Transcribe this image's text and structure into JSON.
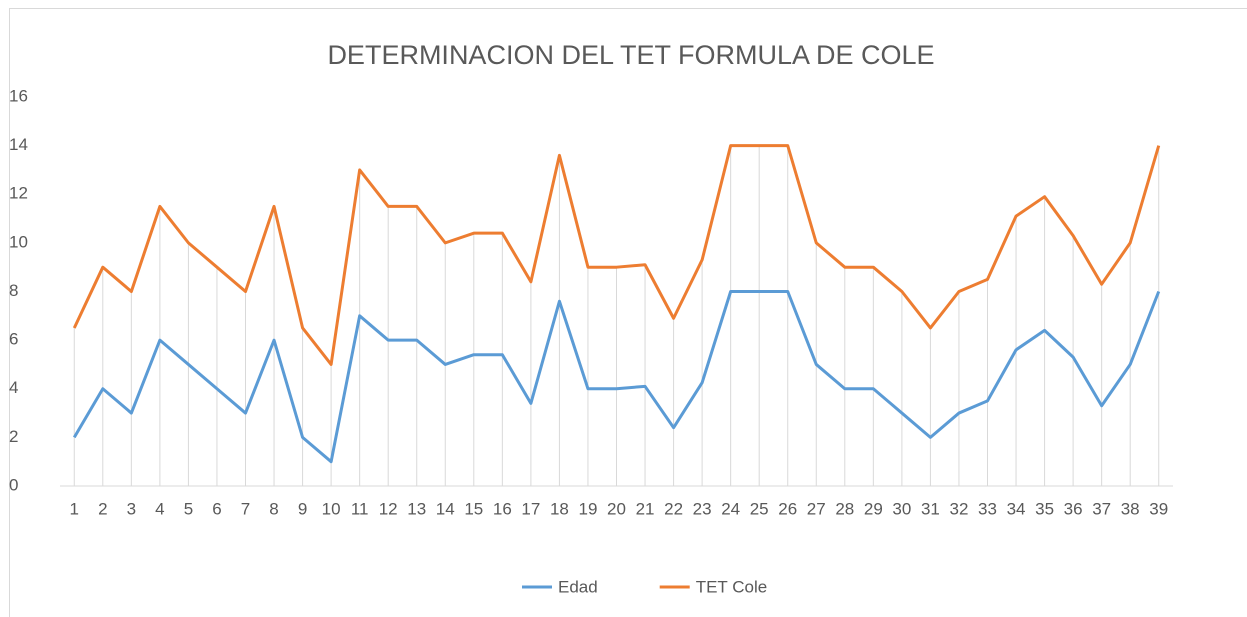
{
  "chart_data": {
    "type": "line",
    "title": "DETERMINACION DEL TET FORMULA DE COLE",
    "categories": [
      "1",
      "2",
      "3",
      "4",
      "5",
      "6",
      "7",
      "8",
      "9",
      "10",
      "11",
      "12",
      "13",
      "14",
      "15",
      "16",
      "17",
      "18",
      "19",
      "20",
      "21",
      "22",
      "23",
      "24",
      "25",
      "26",
      "27",
      "28",
      "29",
      "30",
      "31",
      "32",
      "33",
      "34",
      "35",
      "36",
      "37",
      "38",
      "39"
    ],
    "series": [
      {
        "name": "Edad",
        "color": "#5b9bd5",
        "values": [
          2,
          4,
          3,
          6,
          5,
          4,
          3,
          6,
          2,
          1,
          7,
          6,
          6,
          5,
          5.4,
          5.4,
          3.4,
          7.6,
          4,
          4,
          4.1,
          2.4,
          4.25,
          8,
          8,
          8,
          5,
          4,
          4,
          3,
          2,
          3,
          3.5,
          5.6,
          6.4,
          5.3,
          3.3,
          5,
          8
        ]
      },
      {
        "name": "TET Cole",
        "color": "#ed7d31",
        "values": [
          6.5,
          9,
          8,
          11.5,
          10,
          9,
          8,
          11.5,
          6.5,
          5,
          13,
          11.5,
          11.5,
          10,
          10.4,
          10.4,
          8.4,
          13.6,
          9,
          9,
          9.1,
          6.9,
          9.3,
          14,
          14,
          14,
          10,
          9,
          9,
          8,
          6.5,
          8,
          8.5,
          11.1,
          11.9,
          10.3,
          8.3,
          10,
          14
        ]
      }
    ],
    "ylim": [
      0,
      16
    ],
    "yticks": [
      0,
      2,
      4,
      6,
      8,
      10,
      12,
      14,
      16
    ],
    "drop_lines": true,
    "legend": "bottom"
  }
}
